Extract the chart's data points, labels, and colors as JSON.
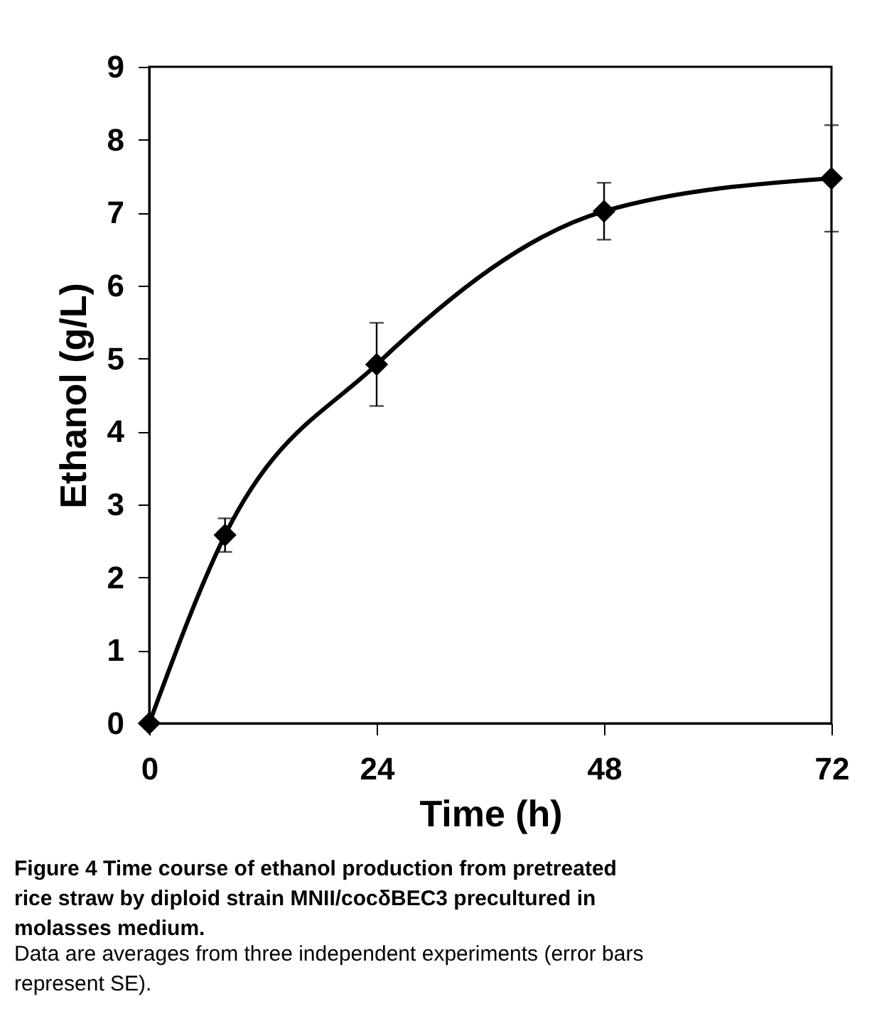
{
  "chart_data": {
    "type": "line",
    "xlabel": "Time (h)",
    "ylabel": "Ethanol (g/L)",
    "x": [
      0,
      8,
      24,
      48,
      72
    ],
    "series": [
      {
        "color": "#000000",
        "values": [
          0,
          2.58,
          4.92,
          7.02,
          7.47
        ],
        "errors": [
          null,
          0.23,
          0.57,
          0.39,
          0.73
        ]
      }
    ],
    "xlim": [
      0,
      72
    ],
    "xticks": [
      0,
      24,
      48,
      72
    ],
    "ylim": [
      0,
      9
    ],
    "yticks": [
      0,
      1,
      2,
      3,
      4,
      5,
      6,
      7,
      8,
      9
    ],
    "marker": "diamond",
    "line_style": "solid",
    "grid": false,
    "annotations": [
      "Figure 4 Time course of ethanol production from pretreated rice straw by diploid strain MNII/cocδBEC3 precultured in molasses medium.",
      "Data are averages from three independent experiments (error bars represent SE)."
    ]
  }
}
